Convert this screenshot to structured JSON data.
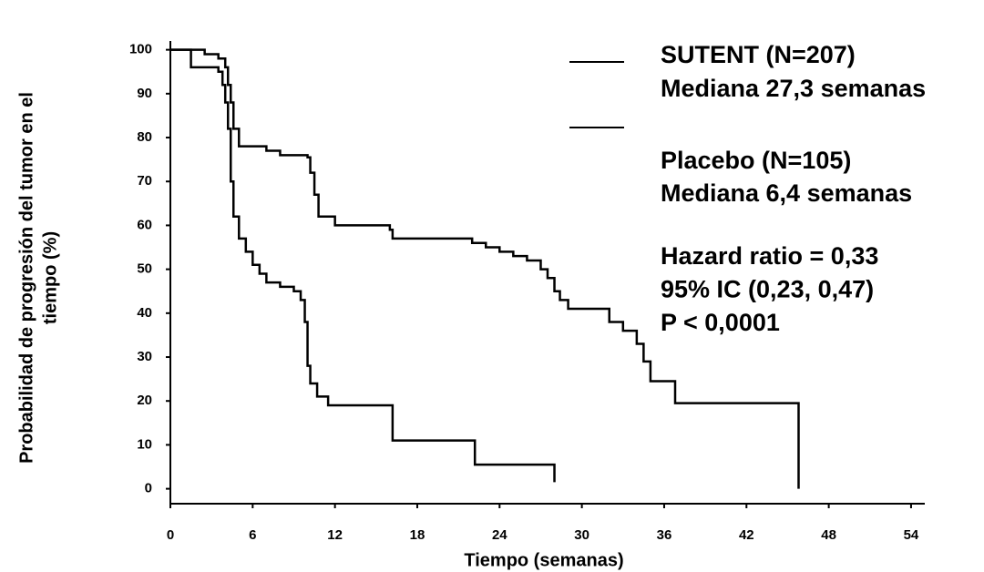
{
  "chart_data": {
    "type": "step",
    "xlabel": "Tiempo (semanas)",
    "ylabel": [
      "Probabilidad de progresión del tumor en el",
      "tiempo (%)"
    ],
    "xlim": [
      0,
      55
    ],
    "ylim": [
      -3.4,
      102
    ],
    "xticks": [
      0,
      6,
      12,
      18,
      24,
      30,
      36,
      42,
      48,
      54
    ],
    "yticks": [
      0,
      10,
      20,
      30,
      40,
      50,
      60,
      70,
      80,
      90,
      100
    ],
    "series": [
      {
        "name": "SUTENT (N=207)",
        "note": "Mediana 27,3 semanas",
        "color": "#000000",
        "x": [
          0,
          2,
          2.5,
          3.5,
          4,
          4.2,
          4.4,
          4.6,
          5,
          7,
          8,
          10,
          10.2,
          10.5,
          10.8,
          12,
          16,
          16.2,
          22,
          23,
          24,
          25,
          26,
          27,
          27.5,
          28,
          28.4,
          29,
          32,
          33,
          34,
          34.5,
          35,
          36.8,
          45.8
        ],
        "values": [
          100,
          100,
          99,
          98,
          96,
          92,
          88,
          82,
          78,
          77,
          76,
          75.5,
          72,
          67,
          62,
          60,
          59,
          57,
          56,
          55,
          54,
          53,
          52,
          50,
          48,
          45,
          43,
          41,
          38,
          36,
          33,
          29,
          24.5,
          19.5,
          0
        ]
      },
      {
        "name": "Placebo (N=105)",
        "note": "Mediana 6,4 semanas",
        "color": "#000000",
        "x": [
          0,
          1.5,
          3.5,
          3.8,
          4,
          4.2,
          4.4,
          4.6,
          5,
          5.5,
          6,
          6.5,
          7,
          8,
          9,
          9.5,
          9.8,
          10,
          10.2,
          10.7,
          11.5,
          16.2,
          22.2,
          28
        ],
        "values": [
          100,
          96,
          95,
          92,
          88,
          82,
          70,
          62,
          57,
          54,
          51,
          49,
          47,
          46,
          45,
          43,
          38,
          28,
          24,
          21,
          19,
          11,
          5.5,
          1.5
        ]
      }
    ],
    "annotations": [
      "Hazard ratio = 0,33",
      "95% IC (0,23, 0,47)",
      "P < 0,0001"
    ]
  }
}
